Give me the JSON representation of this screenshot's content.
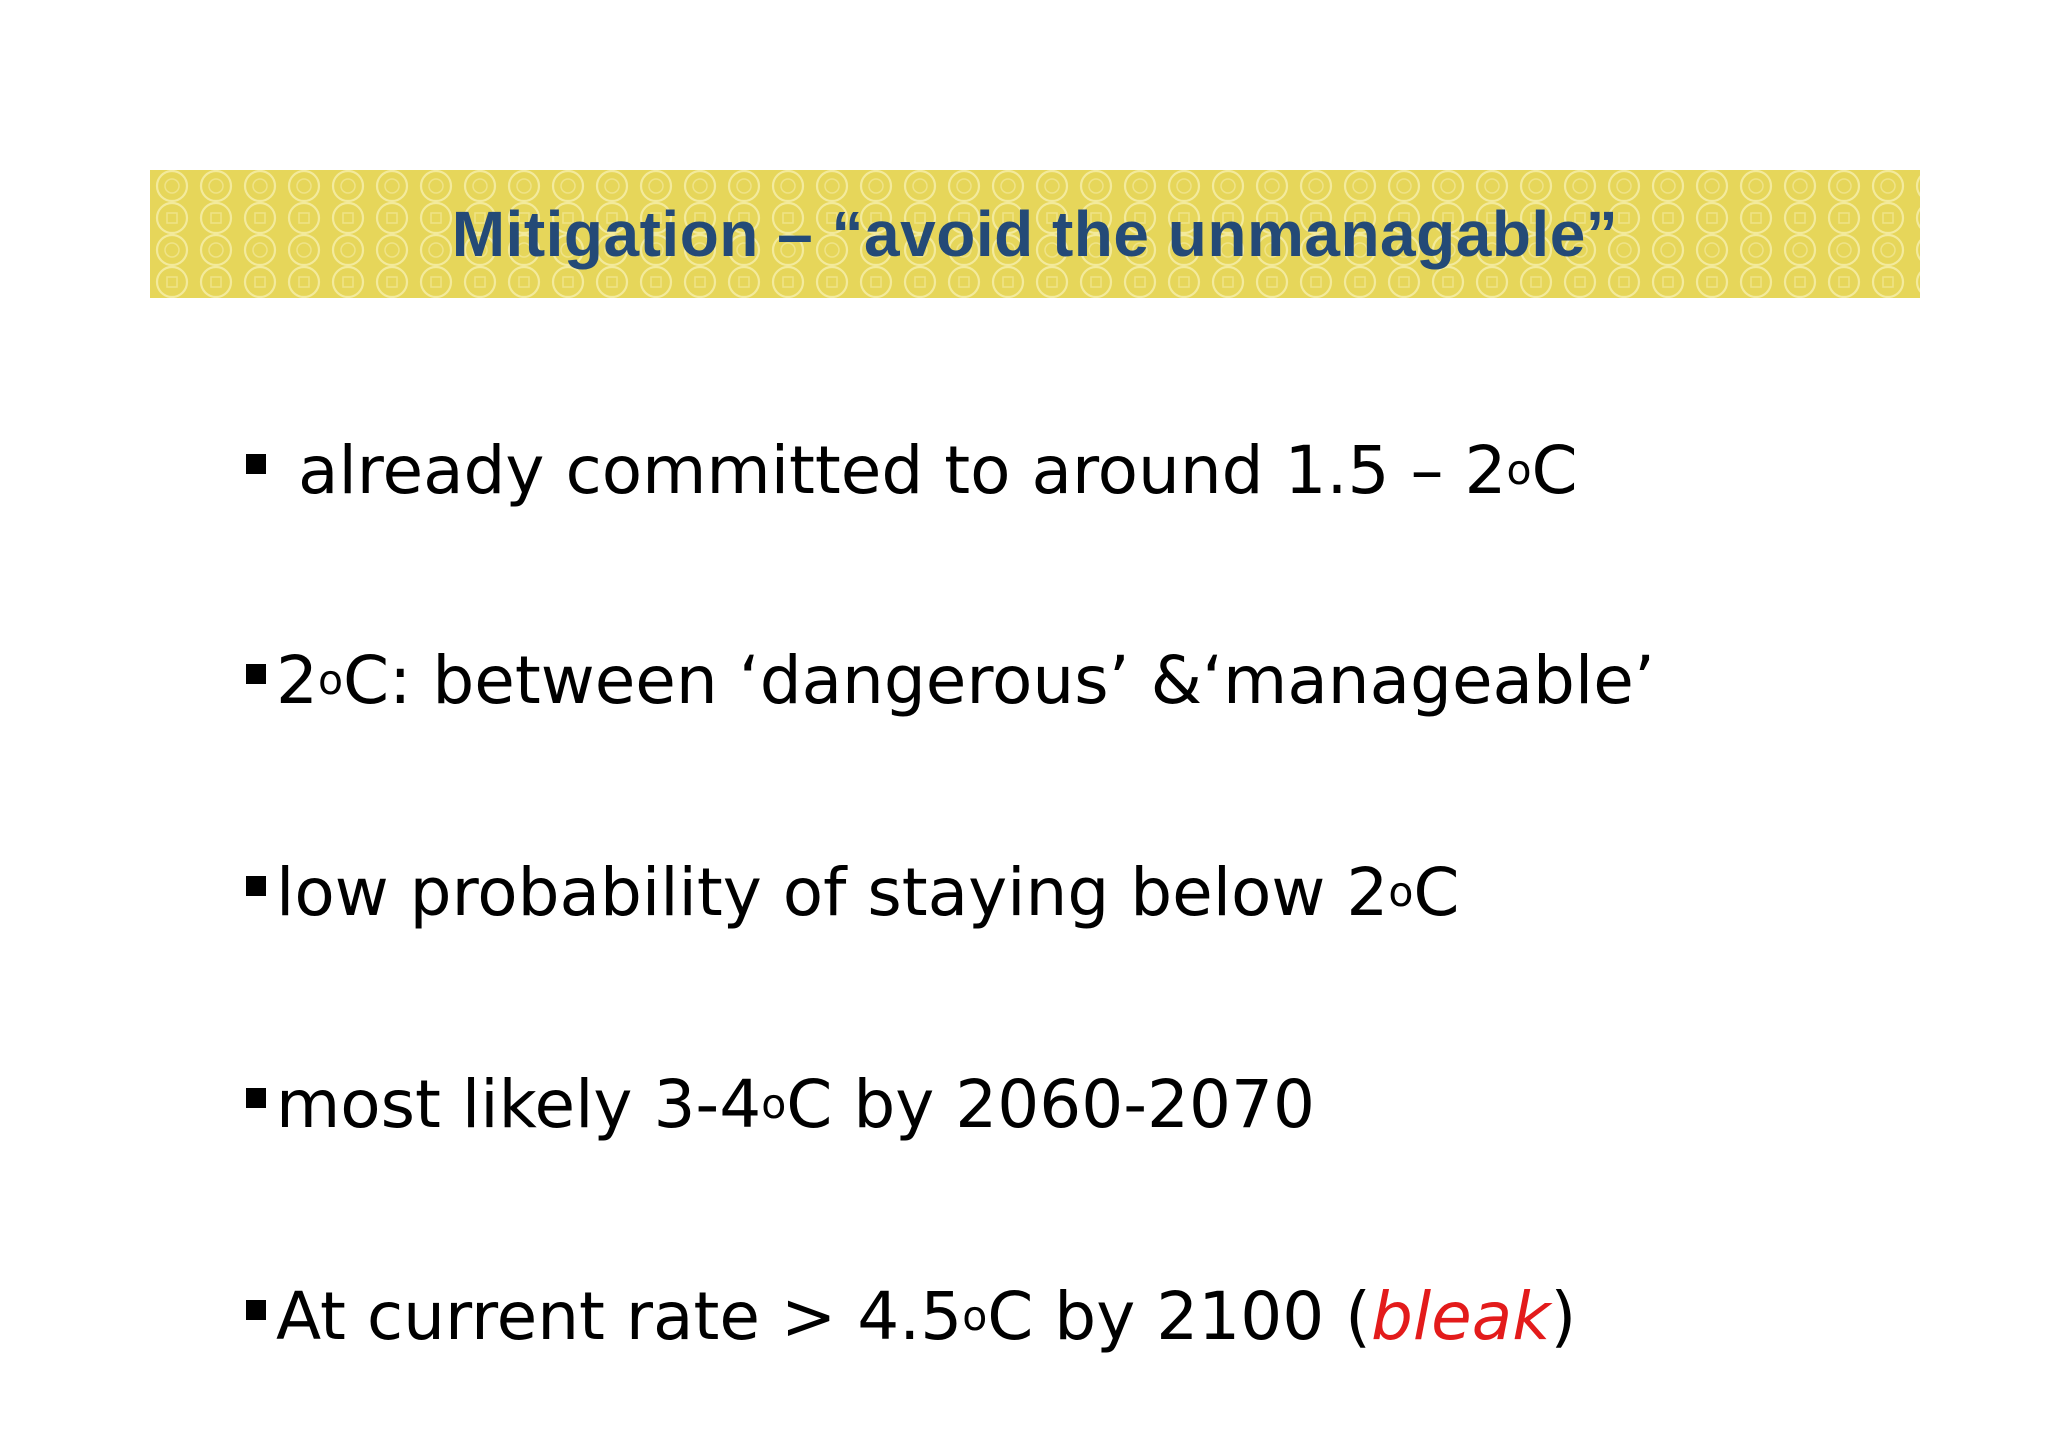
{
  "slide": {
    "title": "Mitigation – “avoid the unmanagable”",
    "colors": {
      "banner": "#e6d65a",
      "title": "#244a77",
      "highlight": "#e31b1b"
    },
    "bullets": [
      {
        "pre": "already committed to around 1.5 – 2",
        "sup": "o",
        "post": "C"
      },
      {
        "pre": "2",
        "sup": "o",
        "post": "C: between ‘dangerous’ &‘manageable’"
      },
      {
        "pre": "low probability of staying below 2",
        "sup": "o",
        "post": "C"
      },
      {
        "pre": "most likely 3-4",
        "sup": "o",
        "post": "C by 2060-2070"
      },
      {
        "pre": "At current rate > 4.5 ",
        "sup": "o",
        "post": "C by 2100   (",
        "highlight": "bleak",
        "tail": ")"
      }
    ]
  }
}
